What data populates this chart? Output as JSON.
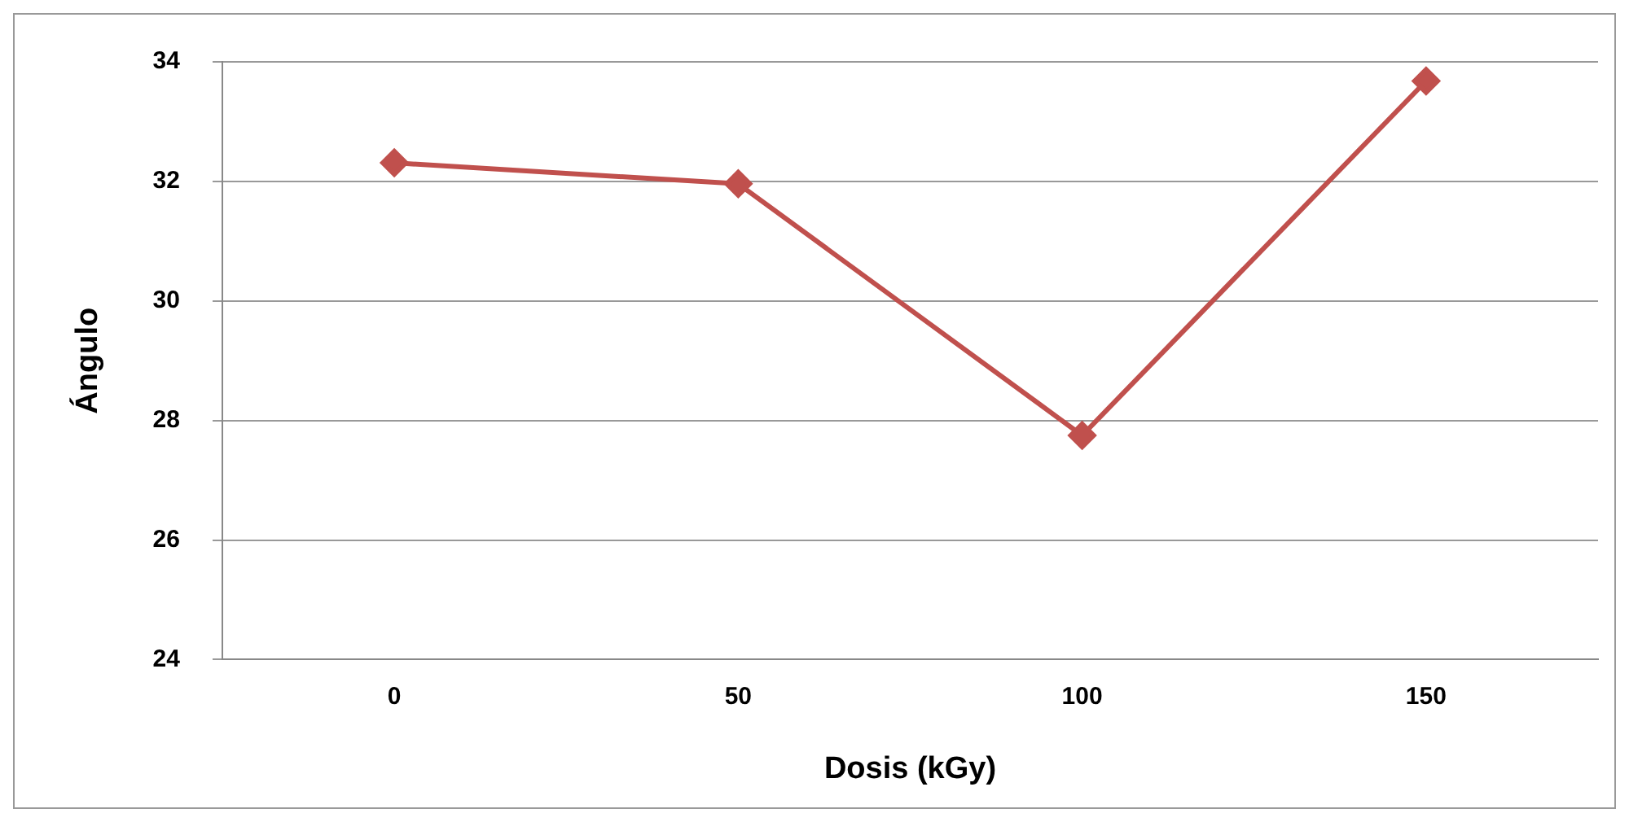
{
  "chart_data": {
    "type": "line",
    "xlabel": "Dosis (kGy)",
    "ylabel": "Ángulo",
    "categories": [
      "0",
      "50",
      "100",
      "150"
    ],
    "series": [
      {
        "color": "#c0504d",
        "values": [
          32.31,
          31.96,
          27.75,
          33.68
        ]
      }
    ],
    "ylim": [
      24,
      34
    ],
    "yticks": [
      24,
      26,
      28,
      30,
      32,
      34
    ],
    "grid": "y",
    "legend": false,
    "marker": "diamond",
    "line_style": "solid"
  }
}
